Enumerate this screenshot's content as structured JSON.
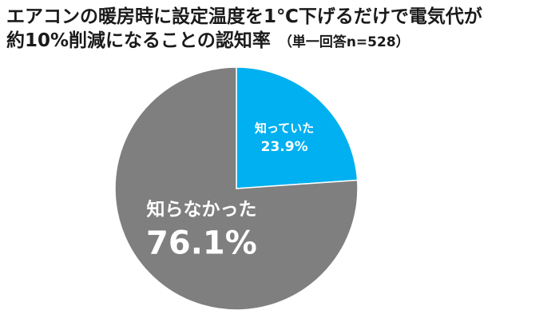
{
  "title": {
    "line1": "エアコンの暖房時に設定温度を1℃下げるだけで電気代が",
    "line2": "約10%削減になることの認知率",
    "note": "（単一回答n=528）"
  },
  "chart_data": {
    "type": "pie",
    "title": "エアコンの暖房時に設定温度を1℃下げるだけで電気代が約10%削減になることの認知率",
    "subtitle": "（単一回答n=528）",
    "unit": "%",
    "slices": [
      {
        "label": "知っていた",
        "value": 23.9,
        "value_label": "23.9%",
        "color": "#00b0f0"
      },
      {
        "label": "知らなかった",
        "value": 76.1,
        "value_label": "76.1%",
        "color": "#7f7f7f"
      }
    ],
    "start_angle": "12 o'clock",
    "direction": "clockwise",
    "legend": "none",
    "slice_border_color": "#ffffff"
  }
}
